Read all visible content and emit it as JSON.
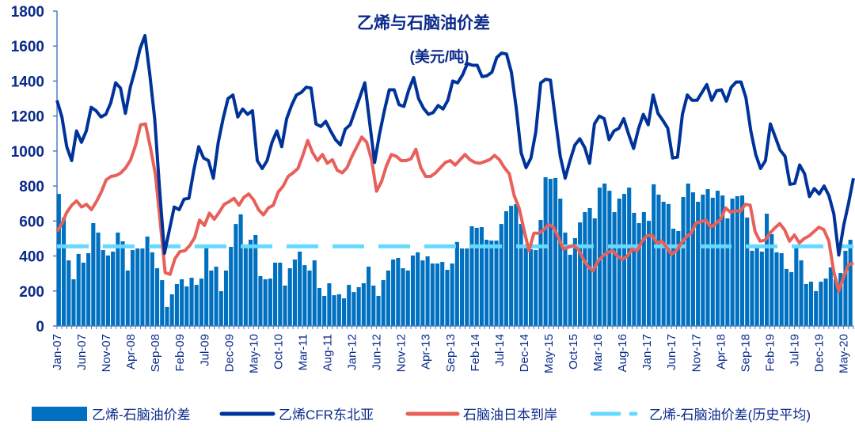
{
  "chart_data": {
    "type": "bar+line",
    "title": "乙烯与石脑油价差",
    "subtitle": "(美元/吨)",
    "xlabel": "",
    "ylabel": "",
    "ylim": [
      0,
      1800
    ],
    "yticks": [
      "0",
      "200",
      "400",
      "600",
      "800",
      "1000",
      "1200",
      "1400",
      "1600",
      "1800"
    ],
    "xtick_labels": [
      "Jan-07",
      "Jun-07",
      "Nov-07",
      "Apr-08",
      "Sep-08",
      "Feb-09",
      "Jul-09",
      "Dec-09",
      "May-10",
      "Oct-10",
      "Mar-11",
      "Aug-11",
      "Jan-12",
      "Jun-12",
      "Nov-12",
      "Apr-13",
      "Sep-13",
      "Feb-14",
      "Jul-14",
      "Dec-14",
      "May-15",
      "Oct-15",
      "Mar-16",
      "Aug-16",
      "Jan-17",
      "Jun-17",
      "Nov-17",
      "Apr-18",
      "Sep-18",
      "Feb-19",
      "Jul-19",
      "Dec-19",
      "May-20"
    ],
    "x_range": [
      "Jan-07",
      "Jul-20"
    ],
    "grid": false,
    "legend_placement": "bottom",
    "colors": {
      "spread": "#0070c0",
      "ethylene": "#003399",
      "naphtha": "#e8605a",
      "average": "#66d9ff"
    },
    "series": [
      {
        "name": "乙烯-石脑油价差",
        "type": "bar",
        "values": [
          755,
          620,
          375,
          267,
          412,
          362,
          416,
          588,
          534,
          434,
          403,
          425,
          534,
          484,
          317,
          434,
          443,
          443,
          511,
          421,
          330,
          262,
          109,
          181,
          240,
          267,
          226,
          276,
          235,
          271,
          452,
          317,
          339,
          199,
          317,
          452,
          583,
          638,
          448,
          493,
          520,
          285,
          267,
          271,
          362,
          362,
          231,
          330,
          380,
          425,
          348,
          317,
          375,
          217,
          172,
          244,
          176,
          181,
          158,
          235,
          194,
          222,
          244,
          339,
          231,
          172,
          262,
          317,
          380,
          389,
          330,
          317,
          403,
          421,
          375,
          398,
          357,
          357,
          366,
          321,
          357,
          480,
          443,
          443,
          570,
          561,
          565,
          493,
          488,
          488,
          583,
          656,
          687,
          697,
          583,
          448,
          439,
          434,
          606,
          850,
          841,
          846,
          728,
          534,
          407,
          502,
          592,
          651,
          674,
          615,
          791,
          814,
          773,
          651,
          728,
          755,
          791,
          647,
          588,
          651,
          601,
          810,
          751,
          710,
          697,
          556,
          543,
          737,
          814,
          764,
          710,
          751,
          782,
          733,
          773,
          746,
          615,
          728,
          742,
          746,
          620,
          430,
          457,
          425,
          642,
          525,
          421,
          416,
          326,
          308,
          452,
          375,
          240,
          253,
          199,
          253,
          271,
          335,
          267,
          303,
          430,
          493
        ]
      },
      {
        "name": "乙烯CFR东北亚",
        "type": "line",
        "values": [
          1290,
          1195,
          1025,
          945,
          1115,
          1050,
          1115,
          1250,
          1230,
          1195,
          1210,
          1275,
          1390,
          1360,
          1215,
          1365,
          1465,
          1585,
          1660,
          1435,
          1185,
          780,
          415,
          550,
          680,
          665,
          725,
          730,
          890,
          1025,
          960,
          945,
          845,
          1050,
          1185,
          1300,
          1320,
          1195,
          1240,
          1210,
          1230,
          945,
          900,
          945,
          1050,
          1115,
          1025,
          1185,
          1260,
          1320,
          1335,
          1365,
          1360,
          1155,
          1140,
          1170,
          1115,
          1065,
          1035,
          1125,
          1150,
          1230,
          1310,
          1390,
          1160,
          935,
          1095,
          1230,
          1350,
          1350,
          1265,
          1255,
          1350,
          1420,
          1300,
          1245,
          1210,
          1220,
          1260,
          1240,
          1290,
          1400,
          1390,
          1435,
          1500,
          1490,
          1490,
          1425,
          1430,
          1450,
          1535,
          1560,
          1555,
          1450,
          1245,
          990,
          905,
          960,
          1110,
          1390,
          1410,
          1405,
          1185,
          970,
          845,
          945,
          1035,
          1070,
          1020,
          930,
          1155,
          1200,
          1185,
          1065,
          1115,
          1130,
          1185,
          1095,
          1015,
          1125,
          1210,
          1150,
          1320,
          1215,
          1175,
          1130,
          960,
          965,
          1210,
          1320,
          1290,
          1290,
          1335,
          1380,
          1290,
          1345,
          1350,
          1285,
          1365,
          1395,
          1395,
          1305,
          1115,
          980,
          900,
          945,
          1155,
          1080,
          1005,
          970,
          810,
          815,
          920,
          870,
          740,
          785,
          755,
          800,
          745,
          640,
          405,
          575,
          700,
          845
        ]
      },
      {
        "name": "石脑油日本到岸",
        "type": "line",
        "values": [
          540,
          585,
          650,
          690,
          715,
          680,
          695,
          665,
          710,
          765,
          835,
          855,
          860,
          875,
          905,
          950,
          1035,
          1150,
          1155,
          1020,
          870,
          595,
          305,
          295,
          385,
          425,
          430,
          460,
          505,
          605,
          575,
          645,
          610,
          650,
          695,
          710,
          730,
          690,
          735,
          755,
          720,
          665,
          635,
          675,
          690,
          765,
          800,
          855,
          875,
          900,
          975,
          1060,
          990,
          945,
          980,
          930,
          950,
          890,
          875,
          905,
          970,
          1025,
          1080,
          1050,
          950,
          770,
          825,
          915,
          980,
          970,
          945,
          945,
          955,
          1010,
          905,
          855,
          855,
          875,
          905,
          935,
          945,
          920,
          950,
          980,
          950,
          935,
          930,
          940,
          950,
          975,
          950,
          905,
          870,
          745,
          675,
          550,
          430,
          530,
          530,
          550,
          580,
          565,
          505,
          440,
          450,
          460,
          440,
          385,
          340,
          315,
          370,
          400,
          420,
          430,
          400,
          380,
          400,
          440,
          430,
          485,
          515,
          520,
          475,
          485,
          450,
          410,
          430,
          475,
          510,
          530,
          590,
          595,
          605,
          565,
          585,
          610,
          675,
          650,
          660,
          655,
          695,
          690,
          540,
          485,
          490,
          530,
          560,
          585,
          550,
          485,
          520,
          475,
          500,
          515,
          540,
          565,
          550,
          485,
          310,
          200,
          280,
          350,
          360
        ]
      },
      {
        "name": "乙烯-石脑油价差(历史平均)",
        "type": "hline",
        "value": 455
      }
    ]
  }
}
